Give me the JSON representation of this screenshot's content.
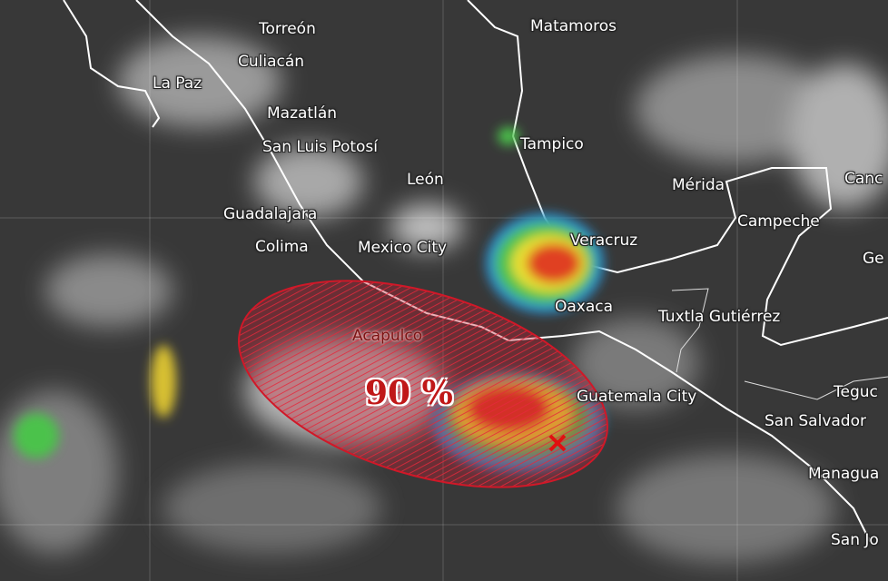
{
  "cities": [
    "Torreón",
    "Matamoros",
    "Culiacán",
    "La Paz",
    "Mazatlán",
    "Tampico",
    "San Luis Potosí",
    "León",
    "Mérida",
    "Canc",
    "Guadalajara",
    "Campeche",
    "Veracruz",
    "Colima",
    "Mexico City",
    "Ge",
    "Oaxaca",
    "Tuxtla Gutiérrez",
    "Acapulco",
    "Guatemala City",
    "Teguc",
    "San Salvador",
    "Managua",
    "San Jo"
  ],
  "outlook": {
    "label": "90 %"
  }
}
